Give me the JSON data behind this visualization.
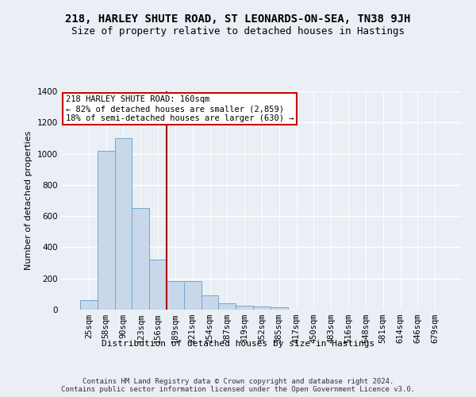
{
  "title": "218, HARLEY SHUTE ROAD, ST LEONARDS-ON-SEA, TN38 9JH",
  "subtitle": "Size of property relative to detached houses in Hastings",
  "xlabel": "Distribution of detached houses by size in Hastings",
  "ylabel": "Number of detached properties",
  "footer_line1": "Contains HM Land Registry data © Crown copyright and database right 2024.",
  "footer_line2": "Contains public sector information licensed under the Open Government Licence v3.0.",
  "bar_labels": [
    "25sqm",
    "58sqm",
    "90sqm",
    "123sqm",
    "156sqm",
    "189sqm",
    "221sqm",
    "254sqm",
    "287sqm",
    "319sqm",
    "352sqm",
    "385sqm",
    "417sqm",
    "450sqm",
    "483sqm",
    "516sqm",
    "548sqm",
    "581sqm",
    "614sqm",
    "646sqm",
    "679sqm"
  ],
  "bar_values": [
    60,
    1020,
    1100,
    650,
    320,
    185,
    185,
    90,
    42,
    25,
    20,
    15,
    0,
    0,
    0,
    0,
    0,
    0,
    0,
    0,
    0
  ],
  "bar_color": "#c8d8ea",
  "bar_edgecolor": "#6fa8d0",
  "vline_x": 4.5,
  "vline_color": "#aa0000",
  "annotation_line1": "218 HARLEY SHUTE ROAD: 160sqm",
  "annotation_line2": "← 82% of detached houses are smaller (2,859)",
  "annotation_line3": "18% of semi-detached houses are larger (630) →",
  "annotation_box_facecolor": "#ffffff",
  "annotation_box_edgecolor": "#cc0000",
  "ylim": [
    0,
    1400
  ],
  "yticks": [
    0,
    200,
    400,
    600,
    800,
    1000,
    1200,
    1400
  ],
  "bg_color": "#eaeef5",
  "grid_color": "#ffffff",
  "title_fontsize": 10,
  "subtitle_fontsize": 9,
  "label_fontsize": 8,
  "tick_fontsize": 7.5,
  "footer_fontsize": 6.5
}
